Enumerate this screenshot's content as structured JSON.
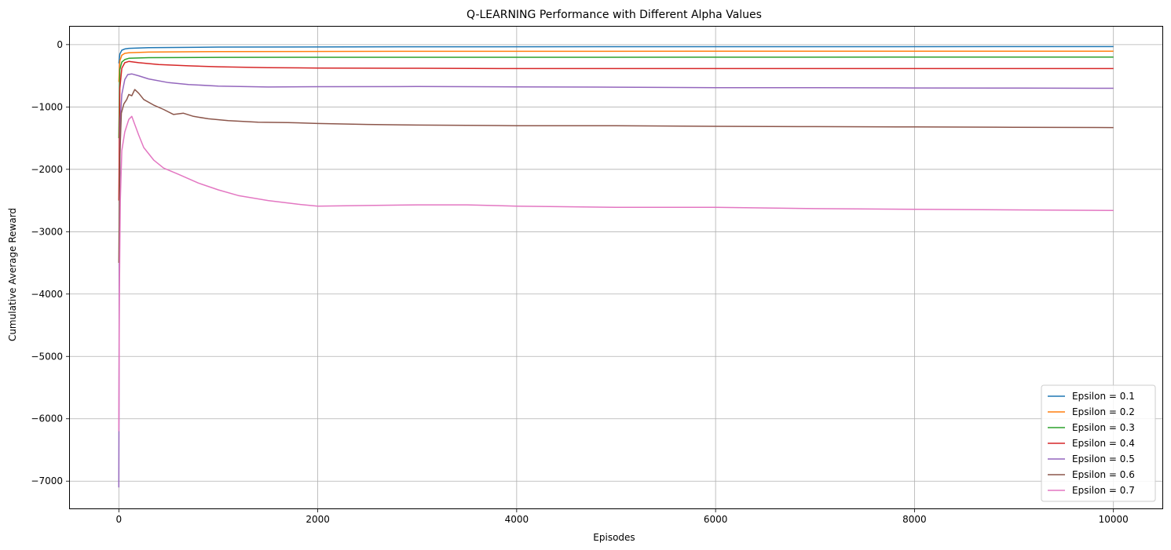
{
  "chart_data": {
    "type": "line",
    "title": "Q-LEARNING Performance with Different Alpha Values",
    "xlabel": "Episodes",
    "ylabel": "Cumulative Average Reward",
    "xlim": [
      -500,
      10500
    ],
    "ylim": [
      -7450,
      300
    ],
    "xticks": [
      0,
      2000,
      4000,
      6000,
      8000,
      10000
    ],
    "yticks": [
      -7000,
      -6000,
      -5000,
      -4000,
      -3000,
      -2000,
      -1000,
      0
    ],
    "grid": true,
    "legend_position": "lower-right",
    "series": [
      {
        "name": "Epsilon = 0.1",
        "color": "#1f77b4",
        "points": [
          [
            0,
            -300
          ],
          [
            10,
            -150
          ],
          [
            30,
            -90
          ],
          [
            60,
            -70
          ],
          [
            100,
            -60
          ],
          [
            300,
            -50
          ],
          [
            1000,
            -40
          ],
          [
            3000,
            -35
          ],
          [
            6000,
            -33
          ],
          [
            10000,
            -32
          ]
        ]
      },
      {
        "name": "Epsilon = 0.2",
        "color": "#ff7f0e",
        "points": [
          [
            0,
            -600
          ],
          [
            10,
            -260
          ],
          [
            30,
            -170
          ],
          [
            60,
            -140
          ],
          [
            100,
            -130
          ],
          [
            300,
            -120
          ],
          [
            1000,
            -112
          ],
          [
            3000,
            -108
          ],
          [
            6000,
            -106
          ],
          [
            10000,
            -105
          ]
        ]
      },
      {
        "name": "Epsilon = 0.3",
        "color": "#2ca02c",
        "points": [
          [
            0,
            -1500
          ],
          [
            10,
            -400
          ],
          [
            30,
            -280
          ],
          [
            60,
            -240
          ],
          [
            100,
            -220
          ],
          [
            300,
            -210
          ],
          [
            1000,
            -205
          ],
          [
            3000,
            -203
          ],
          [
            6000,
            -202
          ],
          [
            10000,
            -200
          ]
        ]
      },
      {
        "name": "Epsilon = 0.4",
        "color": "#d62728",
        "points": [
          [
            0,
            -2500
          ],
          [
            10,
            -700
          ],
          [
            30,
            -380
          ],
          [
            60,
            -290
          ],
          [
            100,
            -270
          ],
          [
            200,
            -290
          ],
          [
            400,
            -320
          ],
          [
            700,
            -340
          ],
          [
            1000,
            -355
          ],
          [
            1500,
            -370
          ],
          [
            2000,
            -375
          ],
          [
            3000,
            -380
          ],
          [
            4000,
            -385
          ],
          [
            6000,
            -385
          ],
          [
            8000,
            -385
          ],
          [
            10000,
            -385
          ]
        ]
      },
      {
        "name": "Epsilon = 0.5",
        "color": "#9467bd",
        "points": [
          [
            0,
            -7100
          ],
          [
            5,
            -3000
          ],
          [
            15,
            -1200
          ],
          [
            30,
            -800
          ],
          [
            60,
            -560
          ],
          [
            90,
            -480
          ],
          [
            130,
            -470
          ],
          [
            200,
            -500
          ],
          [
            300,
            -550
          ],
          [
            500,
            -610
          ],
          [
            700,
            -640
          ],
          [
            1000,
            -665
          ],
          [
            1500,
            -680
          ],
          [
            2000,
            -675
          ],
          [
            3000,
            -672
          ],
          [
            4000,
            -678
          ],
          [
            5000,
            -683
          ],
          [
            6000,
            -690
          ],
          [
            7000,
            -692
          ],
          [
            8000,
            -695
          ],
          [
            9000,
            -698
          ],
          [
            10000,
            -700
          ]
        ]
      },
      {
        "name": "Epsilon = 0.6",
        "color": "#8c564b",
        "points": [
          [
            0,
            -3500
          ],
          [
            10,
            -1800
          ],
          [
            25,
            -1100
          ],
          [
            50,
            -950
          ],
          [
            80,
            -880
          ],
          [
            100,
            -800
          ],
          [
            130,
            -820
          ],
          [
            160,
            -720
          ],
          [
            200,
            -780
          ],
          [
            250,
            -880
          ],
          [
            350,
            -970
          ],
          [
            450,
            -1040
          ],
          [
            550,
            -1120
          ],
          [
            650,
            -1100
          ],
          [
            750,
            -1150
          ],
          [
            900,
            -1190
          ],
          [
            1100,
            -1220
          ],
          [
            1400,
            -1245
          ],
          [
            1700,
            -1250
          ],
          [
            2000,
            -1265
          ],
          [
            2500,
            -1280
          ],
          [
            3000,
            -1290
          ],
          [
            4000,
            -1300
          ],
          [
            5000,
            -1300
          ],
          [
            6000,
            -1310
          ],
          [
            7000,
            -1315
          ],
          [
            8000,
            -1320
          ],
          [
            9000,
            -1325
          ],
          [
            10000,
            -1330
          ]
        ]
      },
      {
        "name": "Epsilon = 0.7",
        "color": "#e377c2",
        "points": [
          [
            0,
            -6200
          ],
          [
            5,
            -4000
          ],
          [
            15,
            -2500
          ],
          [
            30,
            -1700
          ],
          [
            60,
            -1400
          ],
          [
            100,
            -1200
          ],
          [
            130,
            -1150
          ],
          [
            160,
            -1280
          ],
          [
            200,
            -1450
          ],
          [
            250,
            -1650
          ],
          [
            350,
            -1850
          ],
          [
            450,
            -1980
          ],
          [
            600,
            -2080
          ],
          [
            800,
            -2220
          ],
          [
            1000,
            -2330
          ],
          [
            1200,
            -2420
          ],
          [
            1500,
            -2500
          ],
          [
            1800,
            -2560
          ],
          [
            2000,
            -2590
          ],
          [
            2500,
            -2580
          ],
          [
            3000,
            -2570
          ],
          [
            3500,
            -2570
          ],
          [
            4000,
            -2590
          ],
          [
            5000,
            -2610
          ],
          [
            6000,
            -2610
          ],
          [
            7000,
            -2630
          ],
          [
            8000,
            -2640
          ],
          [
            9000,
            -2650
          ],
          [
            10000,
            -2660
          ]
        ]
      }
    ]
  }
}
